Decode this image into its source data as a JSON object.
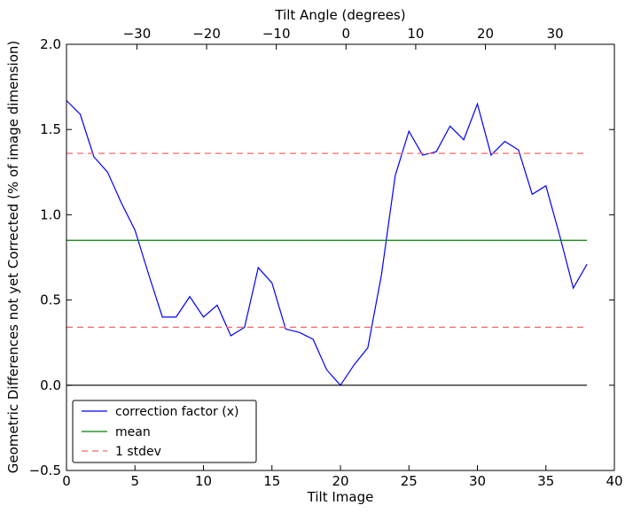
{
  "chart_data": {
    "type": "line",
    "title": "",
    "xlabel": "Tilt Image",
    "ylabel": "Geometric Differences not yet Corrected (% of image dimension)",
    "top_xlabel": "Tilt Angle (degrees)",
    "xlim": [
      0,
      40
    ],
    "ylim": [
      -0.5,
      2.0
    ],
    "top_xlim": [
      -40.1,
      38.5
    ],
    "x_ticks": [
      0,
      5,
      10,
      15,
      20,
      25,
      30,
      35,
      40
    ],
    "y_ticks": [
      -0.5,
      0.0,
      0.5,
      1.0,
      1.5,
      2.0
    ],
    "y_tick_labels": [
      "−0.5",
      "0.0",
      "0.5",
      "1.0",
      "1.5",
      "2.0"
    ],
    "top_ticks": [
      -30,
      -20,
      -10,
      0,
      10,
      20,
      30
    ],
    "top_tick_labels": [
      "−30",
      "−20",
      "−10",
      "0",
      "10",
      "20",
      "30"
    ],
    "grid": false,
    "legend_position": "lower-left",
    "series": [
      {
        "name": "correction factor (x)",
        "color": "#0000ff",
        "style": "solid",
        "x": [
          0,
          1,
          2,
          3,
          4,
          5,
          6,
          7,
          8,
          9,
          10,
          11,
          12,
          13,
          14,
          15,
          16,
          17,
          18,
          19,
          20,
          21,
          22,
          23,
          24,
          25,
          26,
          27,
          28,
          29,
          30,
          31,
          32,
          33,
          34,
          35,
          36,
          37,
          38
        ],
        "y": [
          1.67,
          1.59,
          1.34,
          1.25,
          1.07,
          0.91,
          0.65,
          0.4,
          0.4,
          0.52,
          0.4,
          0.47,
          0.29,
          0.34,
          0.69,
          0.6,
          0.33,
          0.31,
          0.27,
          0.09,
          0.0,
          0.12,
          0.22,
          0.65,
          1.23,
          1.49,
          1.35,
          1.37,
          1.52,
          1.44,
          1.65,
          1.35,
          1.43,
          1.38,
          1.12,
          1.17,
          0.88,
          0.57,
          0.71
        ]
      },
      {
        "name": "mean",
        "color": "#008000",
        "style": "solid",
        "x": [
          0,
          38
        ],
        "y": [
          0.85,
          0.85
        ]
      },
      {
        "name": "1 stdev",
        "color": "#ff0000",
        "style": "dashed",
        "x": [
          0,
          38
        ],
        "y": [
          1.36,
          1.36
        ]
      },
      {
        "color": "#ff0000",
        "style": "dashed",
        "x": [
          0,
          38
        ],
        "y": [
          0.34,
          0.34
        ]
      },
      {
        "color": "#000000",
        "style": "solid",
        "x": [
          0,
          38
        ],
        "y": [
          0.0,
          0.0
        ]
      }
    ]
  }
}
